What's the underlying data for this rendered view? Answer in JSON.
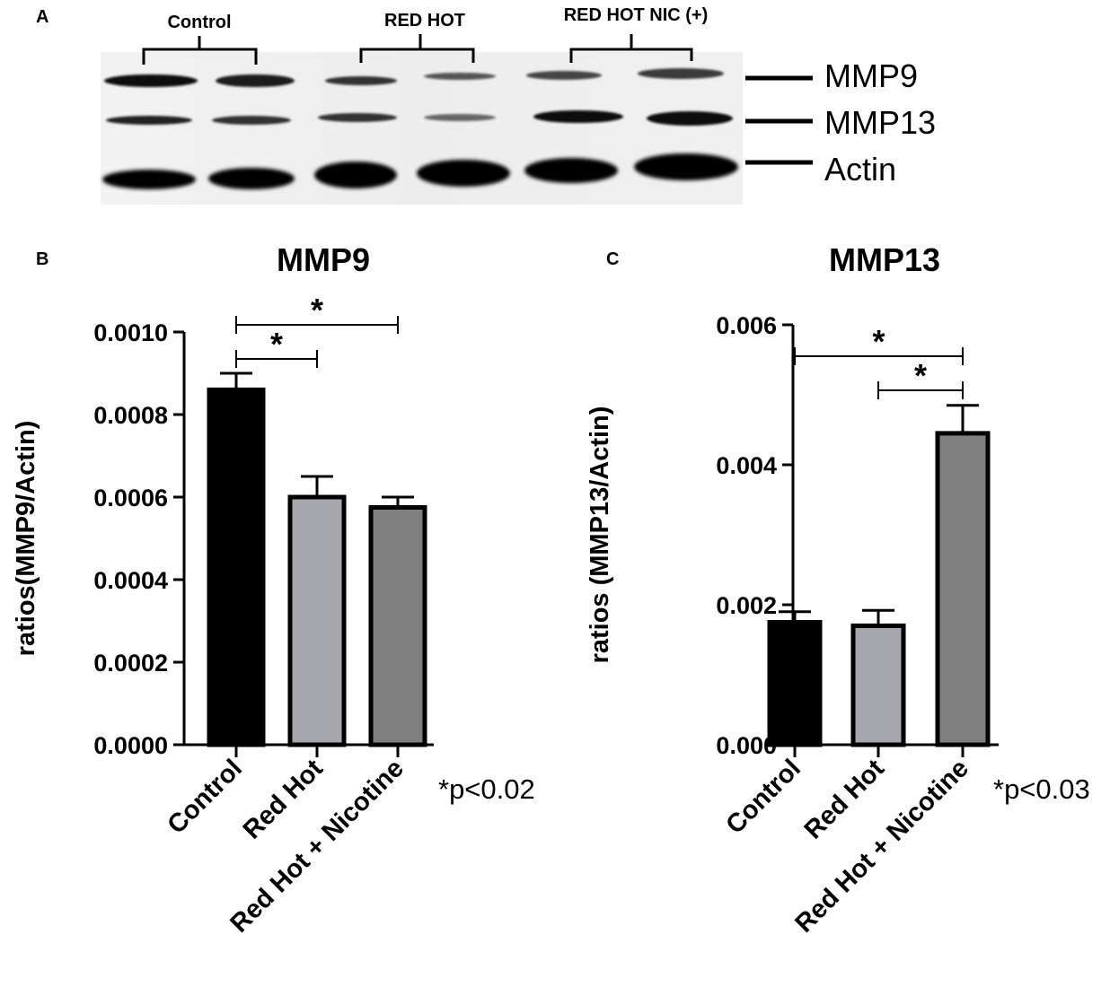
{
  "panels": {
    "a": "A",
    "b": "B",
    "c": "C"
  },
  "blot": {
    "groups": [
      "Control",
      "RED HOT",
      "RED HOT NIC (+)"
    ],
    "bands": [
      "MMP9",
      "MMP13",
      "Actin"
    ]
  },
  "chart_data": [
    {
      "type": "bar",
      "title": "MMP9",
      "ylabel": "ratios(MMP9/Actin)",
      "xlabel": "",
      "categories": [
        "Control",
        "Red Hot",
        "Red Hot + Nicotine"
      ],
      "values": [
        0.00086,
        0.0006,
        0.000575
      ],
      "errors": [
        4e-05,
        5e-05,
        2.5e-05
      ],
      "colors": [
        "#000000",
        "#a6a6ad",
        "#808080"
      ],
      "ylim": [
        0,
        0.001
      ],
      "yticks": [
        "0.0000",
        "0.0002",
        "0.0004",
        "0.0006",
        "0.0008",
        "0.0010"
      ],
      "significance": [
        {
          "from": 0,
          "to": 1,
          "label": "*"
        },
        {
          "from": 0,
          "to": 2,
          "label": "*"
        }
      ],
      "note": "*p<0.02"
    },
    {
      "type": "bar",
      "title": "MMP13",
      "ylabel": "ratios (MMP13/Actin)",
      "xlabel": "",
      "categories": [
        "Control",
        "Red Hot",
        "Red Hot + Nicotine"
      ],
      "values": [
        0.00175,
        0.0017,
        0.00445
      ],
      "errors": [
        0.00015,
        0.00022,
        0.0004
      ],
      "colors": [
        "#000000",
        "#a6a6ad",
        "#808080"
      ],
      "ylim": [
        0,
        0.006
      ],
      "yticks": [
        "0.000",
        "0.002",
        "0.004",
        "0.006"
      ],
      "significance": [
        {
          "from": 1,
          "to": 2,
          "label": "*"
        },
        {
          "from": 0,
          "to": 2,
          "label": "*"
        }
      ],
      "note": "*p<0.03"
    }
  ]
}
